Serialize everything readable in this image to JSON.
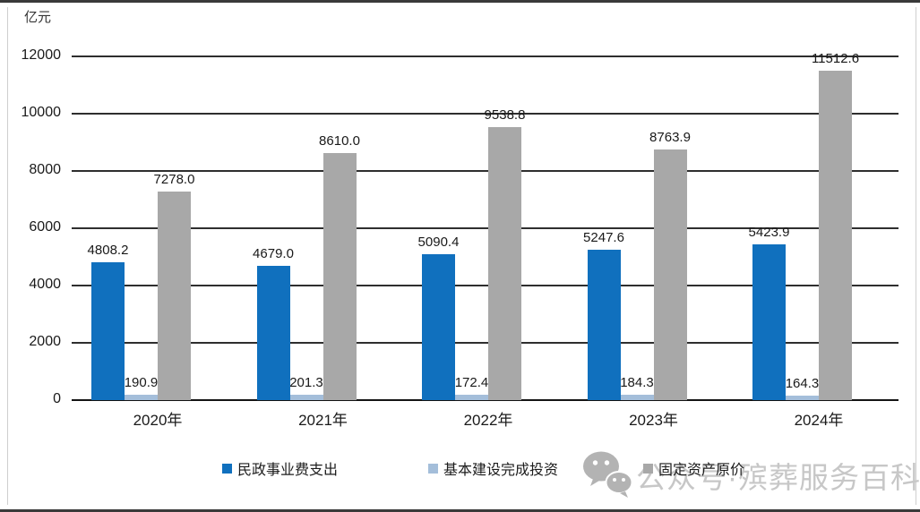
{
  "unit_label": "亿元",
  "watermark": {
    "text": "公众号·殡葬服务百科",
    "icon": "wechat-icon",
    "color": "#c7c7c7"
  },
  "colors": {
    "series_blue": "#1070BE",
    "series_lightblue": "#A4BEDA",
    "series_gray": "#A8A8A8",
    "gridline": "#2e2e2e",
    "text": "#1f1f1f"
  },
  "chart_data": {
    "type": "bar",
    "title": "",
    "ylabel": "亿元",
    "xlabel": "",
    "categories": [
      "2020年",
      "2021年",
      "2022年",
      "2023年",
      "2024年"
    ],
    "series": [
      {
        "name": "民政事业费支出",
        "color": "#1070BE",
        "values": [
          4808.2,
          4679.0,
          5090.4,
          5247.6,
          5423.9
        ]
      },
      {
        "name": "基本建设完成投资",
        "color": "#A4BEDA",
        "values": [
          190.9,
          201.3,
          172.4,
          184.3,
          164.3
        ]
      },
      {
        "name": "固定资产原价",
        "color": "#A8A8A8",
        "values": [
          7278.0,
          8610.0,
          9538.8,
          8763.9,
          11512.6
        ]
      }
    ],
    "ylim": [
      0,
      12000
    ],
    "yticks": [
      0,
      2000,
      4000,
      6000,
      8000,
      10000,
      12000
    ],
    "grid": true,
    "data_labels": true,
    "data_label_decimals": 1,
    "legend_position": "bottom"
  }
}
